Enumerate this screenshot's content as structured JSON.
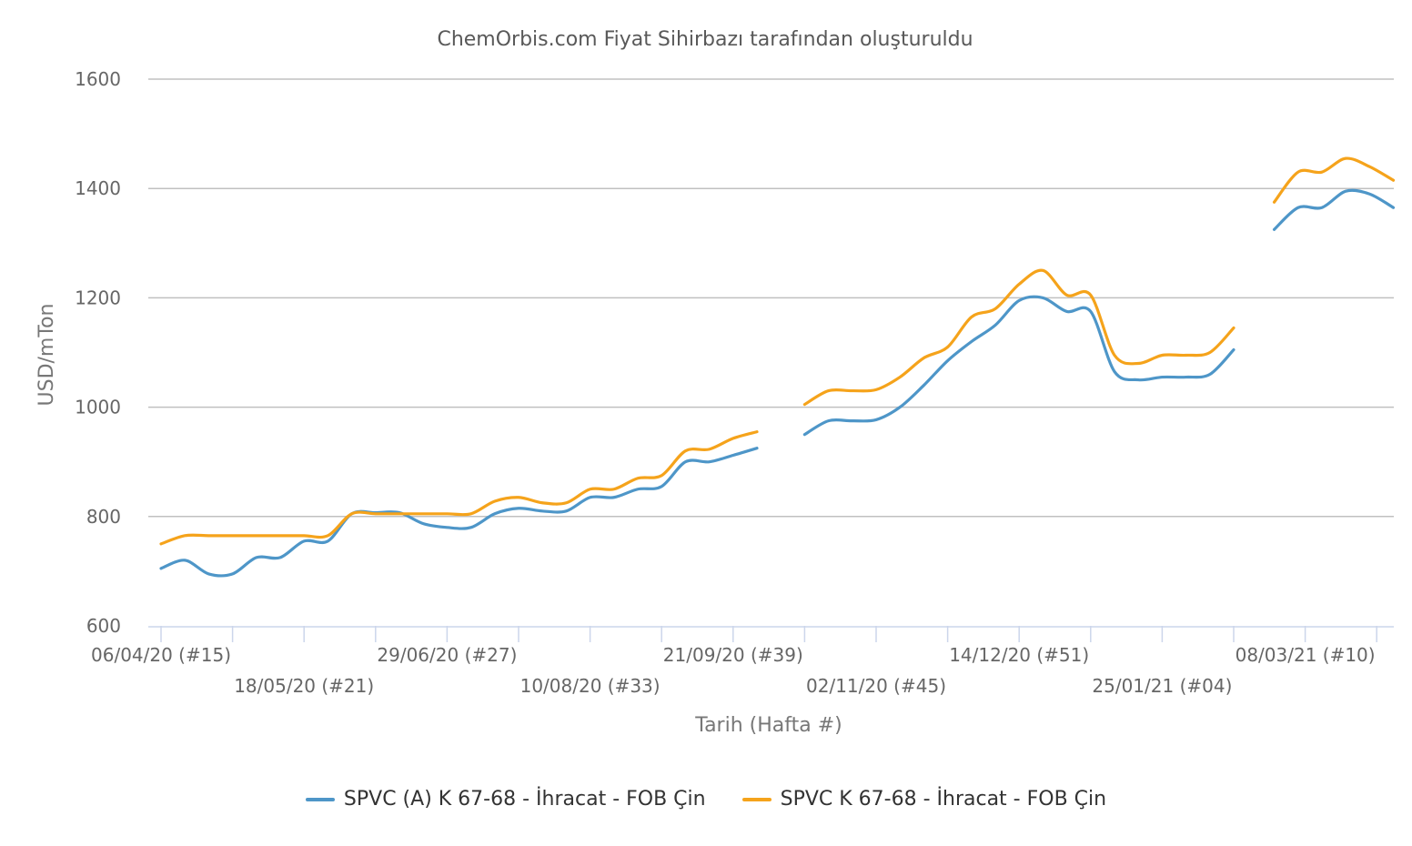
{
  "chart_data": {
    "type": "line",
    "title": "ChemOrbis.com Fiyat Sihirbazı tarafından oluşturuldu",
    "xlabel": "Tarih (Hafta #)",
    "ylabel": "USD/mTon",
    "ylim": [
      600,
      1600
    ],
    "yticks": [
      "600",
      "800",
      "1000",
      "1200",
      "1400",
      "1600"
    ],
    "grid": "horizontal",
    "legend_position": "bottom",
    "x_tick_labels": [
      {
        "week": 0,
        "label": "06/04/20 (#15)",
        "row": 1
      },
      {
        "week": 6,
        "label": "18/05/20 (#21)",
        "row": 2
      },
      {
        "week": 12,
        "label": "29/06/20 (#27)",
        "row": 1
      },
      {
        "week": 18,
        "label": "10/08/20 (#33)",
        "row": 2
      },
      {
        "week": 24,
        "label": "21/09/20 (#39)",
        "row": 1
      },
      {
        "week": 30,
        "label": "02/11/20 (#45)",
        "row": 2
      },
      {
        "week": 36,
        "label": "14/12/20 (#51)",
        "row": 1
      },
      {
        "week": 42,
        "label": "25/01/21 (#04)",
        "row": 2
      },
      {
        "week": 48,
        "label": "08/03/21 (#10)",
        "row": 1
      }
    ],
    "series": [
      {
        "name": "SPVC (A) K 67-68 - İhracat - FOB Çin",
        "color": "#4e96c8",
        "segments": [
          [
            [
              0,
              705
            ],
            [
              1,
              720
            ],
            [
              2,
              695
            ],
            [
              3,
              695
            ],
            [
              4,
              725
            ],
            [
              5,
              725
            ],
            [
              6,
              755
            ],
            [
              7,
              755
            ],
            [
              8,
              805
            ],
            [
              9,
              807
            ],
            [
              10,
              807
            ],
            [
              11,
              787
            ],
            [
              12,
              780
            ],
            [
              13,
              780
            ],
            [
              14,
              805
            ],
            [
              15,
              815
            ],
            [
              16,
              810
            ],
            [
              17,
              810
            ],
            [
              18,
              835
            ],
            [
              19,
              835
            ],
            [
              20,
              850
            ],
            [
              21,
              855
            ],
            [
              22,
              900
            ],
            [
              23,
              900
            ],
            [
              24,
              912
            ],
            [
              25,
              925
            ]
          ],
          [
            [
              27,
              950
            ],
            [
              28,
              975
            ],
            [
              29,
              975
            ],
            [
              30,
              977
            ],
            [
              31,
              1000
            ],
            [
              32,
              1040
            ],
            [
              33,
              1085
            ],
            [
              34,
              1120
            ],
            [
              35,
              1150
            ],
            [
              36,
              1195
            ],
            [
              37,
              1200
            ],
            [
              38,
              1175
            ],
            [
              39,
              1175
            ],
            [
              40,
              1065
            ],
            [
              41,
              1050
            ],
            [
              42,
              1055
            ],
            [
              43,
              1055
            ],
            [
              44,
              1060
            ],
            [
              45,
              1105
            ]
          ],
          [
            [
              46.7,
              1325
            ],
            [
              47.7,
              1365
            ],
            [
              48.7,
              1365
            ],
            [
              49.7,
              1395
            ],
            [
              50.7,
              1390
            ],
            [
              51.7,
              1365
            ]
          ]
        ]
      },
      {
        "name": "SPVC K 67-68 - İhracat - FOB Çin",
        "color": "#f5a31b",
        "segments": [
          [
            [
              0,
              750
            ],
            [
              1,
              765
            ],
            [
              2,
              765
            ],
            [
              3,
              765
            ],
            [
              4,
              765
            ],
            [
              5,
              765
            ],
            [
              6,
              765
            ],
            [
              7,
              765
            ],
            [
              8,
              805
            ],
            [
              9,
              805
            ],
            [
              10,
              805
            ],
            [
              11,
              805
            ],
            [
              12,
              805
            ],
            [
              13,
              805
            ],
            [
              14,
              828
            ],
            [
              15,
              835
            ],
            [
              16,
              825
            ],
            [
              17,
              825
            ],
            [
              18,
              850
            ],
            [
              19,
              850
            ],
            [
              20,
              870
            ],
            [
              21,
              875
            ],
            [
              22,
              920
            ],
            [
              23,
              923
            ],
            [
              24,
              943
            ],
            [
              25,
              955
            ]
          ],
          [
            [
              27,
              1005
            ],
            [
              28,
              1030
            ],
            [
              29,
              1030
            ],
            [
              30,
              1032
            ],
            [
              31,
              1055
            ],
            [
              32,
              1090
            ],
            [
              33,
              1110
            ],
            [
              34,
              1165
            ],
            [
              35,
              1180
            ],
            [
              36,
              1225
            ],
            [
              37,
              1250
            ],
            [
              38,
              1205
            ],
            [
              39,
              1205
            ],
            [
              40,
              1095
            ],
            [
              41,
              1080
            ],
            [
              42,
              1095
            ],
            [
              43,
              1095
            ],
            [
              44,
              1100
            ],
            [
              45,
              1145
            ]
          ],
          [
            [
              46.7,
              1375
            ],
            [
              47.7,
              1430
            ],
            [
              48.7,
              1430
            ],
            [
              49.7,
              1455
            ],
            [
              50.7,
              1440
            ],
            [
              51.7,
              1415
            ]
          ]
        ]
      }
    ]
  }
}
